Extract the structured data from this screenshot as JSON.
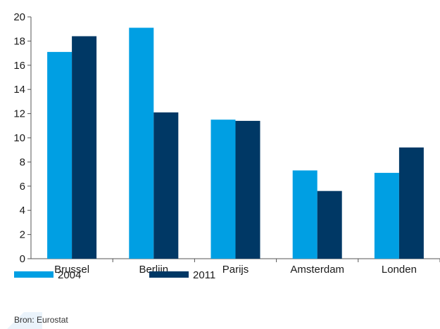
{
  "chart_data": {
    "type": "bar",
    "title": "",
    "xlabel": "",
    "ylabel": "",
    "categories": [
      "Brussel",
      "Berlijn",
      "Parijs",
      "Amsterdam",
      "Londen"
    ],
    "series": [
      {
        "name": "2004",
        "color": "#009fe3",
        "values": [
          17.1,
          19.1,
          11.5,
          7.3,
          7.1
        ]
      },
      {
        "name": "2011",
        "color": "#003865",
        "values": [
          18.4,
          12.1,
          11.4,
          5.6,
          9.2
        ]
      }
    ],
    "ylim": [
      0,
      20
    ],
    "yticks": [
      "0",
      "2",
      "4",
      "6",
      "8",
      "10",
      "12",
      "14",
      "16",
      "18",
      "20"
    ],
    "grid": false,
    "legend_position": "bottom-left"
  },
  "source": "Bron: Eurostat"
}
